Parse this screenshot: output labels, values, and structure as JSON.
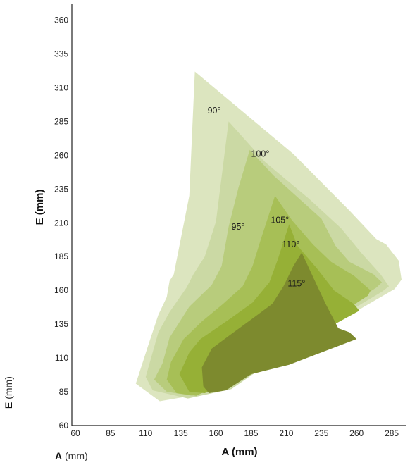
{
  "chart_data": {
    "type": "area",
    "xlabel": "A (mm)",
    "ylabel": "E (mm)",
    "xlim": [
      60,
      300
    ],
    "ylim": [
      60,
      365
    ],
    "xticks": [
      60,
      85,
      110,
      135,
      160,
      185,
      210,
      235,
      260,
      285
    ],
    "yticks": [
      60,
      85,
      110,
      135,
      160,
      185,
      210,
      235,
      260,
      285,
      310,
      335,
      360
    ],
    "grid": false,
    "legend": "none",
    "series": [
      {
        "name": "90°",
        "color": "#dce5bf",
        "label_at": [
          154,
          291
        ],
        "points": [
          [
            145,
            322
          ],
          [
            215,
            261
          ],
          [
            255,
            219
          ],
          [
            274,
            198
          ],
          [
            281,
            194
          ],
          [
            290,
            182
          ],
          [
            292,
            168
          ],
          [
            287,
            161
          ],
          [
            229,
            126
          ],
          [
            165,
            86
          ],
          [
            120,
            78
          ],
          [
            103,
            91
          ],
          [
            112,
            120
          ],
          [
            119,
            142
          ],
          [
            125,
            155
          ],
          [
            127,
            167
          ],
          [
            130,
            172
          ],
          [
            141,
            230
          ]
        ]
      },
      {
        "name": "95°",
        "color": "#cbd9a4",
        "label_at": [
          171,
          205
        ],
        "points": [
          [
            169,
            285
          ],
          [
            195,
            255
          ],
          [
            226,
            228
          ],
          [
            249,
            206
          ],
          [
            264,
            187
          ],
          [
            277,
            172
          ],
          [
            283,
            163
          ],
          [
            278,
            159
          ],
          [
            228,
            128
          ],
          [
            171,
            87
          ],
          [
            140,
            80
          ],
          [
            115,
            86
          ],
          [
            110,
            96
          ],
          [
            119,
            129
          ],
          [
            127,
            144
          ],
          [
            139,
            162
          ],
          [
            144,
            172
          ],
          [
            152,
            185
          ],
          [
            160,
            211
          ]
        ]
      },
      {
        "name": "100°",
        "color": "#b8cc7c",
        "label_at": [
          185,
          259
        ],
        "points": [
          [
            184,
            264
          ],
          [
            201,
            245
          ],
          [
            235,
            213
          ],
          [
            245,
            193
          ],
          [
            255,
            181
          ],
          [
            272,
            172
          ],
          [
            278,
            166
          ],
          [
            274,
            162
          ],
          [
            222,
            128
          ],
          [
            171,
            92
          ],
          [
            143,
            82
          ],
          [
            125,
            85
          ],
          [
            116,
            94
          ],
          [
            122,
            106
          ],
          [
            127,
            125
          ],
          [
            141,
            148
          ],
          [
            157,
            164
          ],
          [
            164,
            178
          ],
          [
            169,
            207
          ],
          [
            176,
            236
          ]
        ]
      },
      {
        "name": "105°",
        "color": "#a7bf56",
        "label_at": [
          199,
          210
        ],
        "points": [
          [
            202,
            230
          ],
          [
            214,
            212
          ],
          [
            229,
            194
          ],
          [
            242,
            181
          ],
          [
            258,
            171
          ],
          [
            270,
            160
          ],
          [
            268,
            156
          ],
          [
            226,
            128
          ],
          [
            178,
            95
          ],
          [
            160,
            89
          ],
          [
            146,
            82
          ],
          [
            132,
            84
          ],
          [
            125,
            94
          ],
          [
            128,
            107
          ],
          [
            137,
            124
          ],
          [
            150,
            137
          ],
          [
            165,
            150
          ],
          [
            179,
            163
          ],
          [
            186,
            178
          ],
          [
            192,
            198
          ]
        ]
      },
      {
        "name": "110°",
        "color": "#96b036",
        "label_at": [
          207,
          192
        ],
        "points": [
          [
            212,
            209
          ],
          [
            218,
            193
          ],
          [
            232,
            176
          ],
          [
            244,
            160
          ],
          [
            258,
            150
          ],
          [
            262,
            145
          ],
          [
            241,
            133
          ],
          [
            212,
            119
          ],
          [
            185,
            101
          ],
          [
            166,
            90
          ],
          [
            152,
            84
          ],
          [
            141,
            85
          ],
          [
            134,
            98
          ],
          [
            141,
            114
          ],
          [
            149,
            124
          ],
          [
            170,
            139
          ],
          [
            186,
            151
          ],
          [
            198,
            166
          ],
          [
            204,
            183
          ]
        ]
      },
      {
        "name": "115°",
        "color": "#7d8a2e",
        "label_at": [
          211,
          163
        ],
        "points": [
          [
            221,
            188
          ],
          [
            229,
            170
          ],
          [
            238,
            150
          ],
          [
            247,
            132
          ],
          [
            255,
            129
          ],
          [
            260,
            124
          ],
          [
            212,
            105
          ],
          [
            185,
            98
          ],
          [
            167,
            86
          ],
          [
            155,
            84
          ],
          [
            151,
            89
          ],
          [
            150,
            103
          ],
          [
            157,
            117
          ],
          [
            170,
            127
          ],
          [
            187,
            140
          ],
          [
            200,
            150
          ],
          [
            208,
            163
          ],
          [
            215,
            178
          ]
        ]
      }
    ]
  },
  "side_labels": {
    "e_bold": "E",
    "e_unit": "(mm)",
    "a_bold": "A",
    "a_unit": "(mm)"
  }
}
